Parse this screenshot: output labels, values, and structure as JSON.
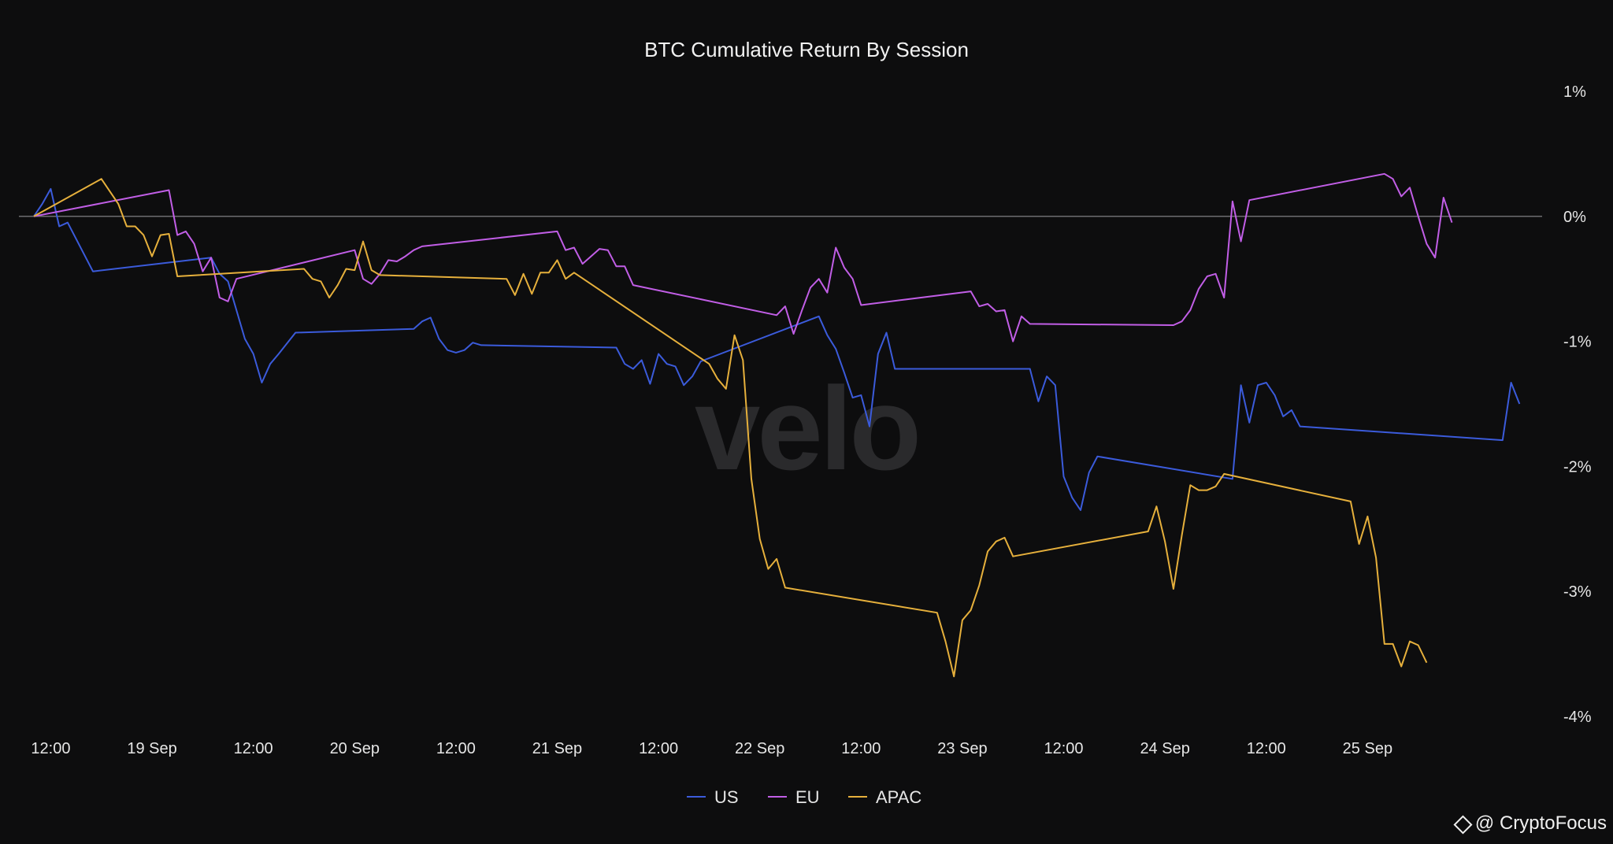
{
  "chart_data": {
    "type": "line",
    "title": "BTC Cumulative Return By Session",
    "watermark": "velo",
    "x_axis": {
      "type": "date",
      "range": [
        "2023-09-18T10:00",
        "2023-09-25T19:00"
      ],
      "ticks": [
        {
          "t": "2023-09-18T12:00",
          "label": "12:00"
        },
        {
          "t": "2023-09-19T00:00",
          "label": "19 Sep"
        },
        {
          "t": "2023-09-19T12:00",
          "label": "12:00"
        },
        {
          "t": "2023-09-20T00:00",
          "label": "20 Sep"
        },
        {
          "t": "2023-09-20T12:00",
          "label": "12:00"
        },
        {
          "t": "2023-09-21T00:00",
          "label": "21 Sep"
        },
        {
          "t": "2023-09-21T12:00",
          "label": "12:00"
        },
        {
          "t": "2023-09-22T00:00",
          "label": "22 Sep"
        },
        {
          "t": "2023-09-22T12:00",
          "label": "12:00"
        },
        {
          "t": "2023-09-23T00:00",
          "label": "23 Sep"
        },
        {
          "t": "2023-09-23T12:00",
          "label": "12:00"
        },
        {
          "t": "2023-09-24T00:00",
          "label": "24 Sep"
        },
        {
          "t": "2023-09-24T12:00",
          "label": "12:00"
        },
        {
          "t": "2023-09-25T00:00",
          "label": "25 Sep"
        }
      ]
    },
    "y_axis": {
      "position": "right",
      "range": [
        -4,
        1
      ],
      "ticks": [
        {
          "v": 1,
          "label": "1%"
        },
        {
          "v": 0,
          "label": "0%"
        },
        {
          "v": -1,
          "label": "-1%"
        },
        {
          "v": -2,
          "label": "-2%"
        },
        {
          "v": -3,
          "label": "-3%"
        },
        {
          "v": -4,
          "label": "-4%"
        }
      ],
      "reference_line": 0
    },
    "grid": false,
    "legend": "bottom-center",
    "series": [
      {
        "name": "US",
        "color": "#3b5bdb",
        "points": [
          [
            "2023-09-18T10:00",
            0.0
          ],
          [
            "2023-09-18T11:00",
            0.1
          ],
          [
            "2023-09-18T12:00",
            0.22
          ],
          [
            "2023-09-18T13:00",
            -0.08
          ],
          [
            "2023-09-18T14:00",
            -0.05
          ],
          [
            "2023-09-18T17:00",
            -0.44
          ],
          [
            "2023-09-19T07:00",
            -0.33
          ],
          [
            "2023-09-19T08:00",
            -0.46
          ],
          [
            "2023-09-19T09:00",
            -0.52
          ],
          [
            "2023-09-19T11:00",
            -0.98
          ],
          [
            "2023-09-19T12:00",
            -1.1
          ],
          [
            "2023-09-19T13:00",
            -1.33
          ],
          [
            "2023-09-19T14:00",
            -1.18
          ],
          [
            "2023-09-19T15:00",
            -1.1
          ],
          [
            "2023-09-19T17:00",
            -0.93
          ],
          [
            "2023-09-20T07:00",
            -0.9
          ],
          [
            "2023-09-20T08:00",
            -0.84
          ],
          [
            "2023-09-20T09:00",
            -0.81
          ],
          [
            "2023-09-20T10:00",
            -0.98
          ],
          [
            "2023-09-20T11:00",
            -1.07
          ],
          [
            "2023-09-20T12:00",
            -1.09
          ],
          [
            "2023-09-20T13:00",
            -1.07
          ],
          [
            "2023-09-20T14:00",
            -1.01
          ],
          [
            "2023-09-20T15:00",
            -1.03
          ],
          [
            "2023-09-21T07:00",
            -1.05
          ],
          [
            "2023-09-21T08:00",
            -1.18
          ],
          [
            "2023-09-21T09:00",
            -1.22
          ],
          [
            "2023-09-21T10:00",
            -1.15
          ],
          [
            "2023-09-21T11:00",
            -1.34
          ],
          [
            "2023-09-21T12:00",
            -1.1
          ],
          [
            "2023-09-21T13:00",
            -1.18
          ],
          [
            "2023-09-21T14:00",
            -1.2
          ],
          [
            "2023-09-21T15:00",
            -1.35
          ],
          [
            "2023-09-21T16:00",
            -1.28
          ],
          [
            "2023-09-21T17:00",
            -1.16
          ],
          [
            "2023-09-22T07:00",
            -0.8
          ],
          [
            "2023-09-22T08:00",
            -0.95
          ],
          [
            "2023-09-22T09:00",
            -1.06
          ],
          [
            "2023-09-22T10:00",
            -1.25
          ],
          [
            "2023-09-22T11:00",
            -1.45
          ],
          [
            "2023-09-22T12:00",
            -1.43
          ],
          [
            "2023-09-22T13:00",
            -1.68
          ],
          [
            "2023-09-22T14:00",
            -1.1
          ],
          [
            "2023-09-22T15:00",
            -0.93
          ],
          [
            "2023-09-22T16:00",
            -1.22
          ],
          [
            "2023-09-23T08:00",
            -1.22
          ],
          [
            "2023-09-23T09:00",
            -1.48
          ],
          [
            "2023-09-23T10:00",
            -1.28
          ],
          [
            "2023-09-23T11:00",
            -1.35
          ],
          [
            "2023-09-23T12:00",
            -2.08
          ],
          [
            "2023-09-23T13:00",
            -2.25
          ],
          [
            "2023-09-23T14:00",
            -2.35
          ],
          [
            "2023-09-23T15:00",
            -2.05
          ],
          [
            "2023-09-23T16:00",
            -1.92
          ],
          [
            "2023-09-24T08:00",
            -2.1
          ],
          [
            "2023-09-24T09:00",
            -1.35
          ],
          [
            "2023-09-24T10:00",
            -1.65
          ],
          [
            "2023-09-24T11:00",
            -1.35
          ],
          [
            "2023-09-24T12:00",
            -1.33
          ],
          [
            "2023-09-24T13:00",
            -1.43
          ],
          [
            "2023-09-24T14:00",
            -1.6
          ],
          [
            "2023-09-24T15:00",
            -1.55
          ],
          [
            "2023-09-24T16:00",
            -1.68
          ],
          [
            "2023-09-25T16:00",
            -1.79
          ],
          [
            "2023-09-25T17:00",
            -1.33
          ],
          [
            "2023-09-25T18:00",
            -1.5
          ]
        ]
      },
      {
        "name": "EU",
        "color": "#c15ee6",
        "points": [
          [
            "2023-09-18T10:00",
            0.0
          ],
          [
            "2023-09-19T02:00",
            0.21
          ],
          [
            "2023-09-19T03:00",
            -0.15
          ],
          [
            "2023-09-19T04:00",
            -0.12
          ],
          [
            "2023-09-19T05:00",
            -0.22
          ],
          [
            "2023-09-19T06:00",
            -0.44
          ],
          [
            "2023-09-19T07:00",
            -0.33
          ],
          [
            "2023-09-19T08:00",
            -0.65
          ],
          [
            "2023-09-19T09:00",
            -0.68
          ],
          [
            "2023-09-19T10:00",
            -0.5
          ],
          [
            "2023-09-20T00:00",
            -0.27
          ],
          [
            "2023-09-20T01:00",
            -0.5
          ],
          [
            "2023-09-20T02:00",
            -0.54
          ],
          [
            "2023-09-20T03:00",
            -0.46
          ],
          [
            "2023-09-20T04:00",
            -0.35
          ],
          [
            "2023-09-20T05:00",
            -0.36
          ],
          [
            "2023-09-20T06:00",
            -0.32
          ],
          [
            "2023-09-20T07:00",
            -0.27
          ],
          [
            "2023-09-20T08:00",
            -0.24
          ],
          [
            "2023-09-21T00:00",
            -0.12
          ],
          [
            "2023-09-21T01:00",
            -0.27
          ],
          [
            "2023-09-21T02:00",
            -0.25
          ],
          [
            "2023-09-21T03:00",
            -0.38
          ],
          [
            "2023-09-21T04:00",
            -0.32
          ],
          [
            "2023-09-21T05:00",
            -0.26
          ],
          [
            "2023-09-21T06:00",
            -0.27
          ],
          [
            "2023-09-21T07:00",
            -0.4
          ],
          [
            "2023-09-21T08:00",
            -0.4
          ],
          [
            "2023-09-21T09:00",
            -0.55
          ],
          [
            "2023-09-22T02:00",
            -0.79
          ],
          [
            "2023-09-22T03:00",
            -0.72
          ],
          [
            "2023-09-22T04:00",
            -0.94
          ],
          [
            "2023-09-22T05:00",
            -0.75
          ],
          [
            "2023-09-22T06:00",
            -0.57
          ],
          [
            "2023-09-22T07:00",
            -0.5
          ],
          [
            "2023-09-22T08:00",
            -0.61
          ],
          [
            "2023-09-22T09:00",
            -0.25
          ],
          [
            "2023-09-22T10:00",
            -0.41
          ],
          [
            "2023-09-22T11:00",
            -0.5
          ],
          [
            "2023-09-22T12:00",
            -0.71
          ],
          [
            "2023-09-23T01:00",
            -0.6
          ],
          [
            "2023-09-23T02:00",
            -0.72
          ],
          [
            "2023-09-23T03:00",
            -0.7
          ],
          [
            "2023-09-23T04:00",
            -0.76
          ],
          [
            "2023-09-23T05:00",
            -0.75
          ],
          [
            "2023-09-23T06:00",
            -1.0
          ],
          [
            "2023-09-23T07:00",
            -0.8
          ],
          [
            "2023-09-23T08:00",
            -0.86
          ],
          [
            "2023-09-24T01:00",
            -0.87
          ],
          [
            "2023-09-24T02:00",
            -0.84
          ],
          [
            "2023-09-24T03:00",
            -0.75
          ],
          [
            "2023-09-24T04:00",
            -0.58
          ],
          [
            "2023-09-24T05:00",
            -0.48
          ],
          [
            "2023-09-24T06:00",
            -0.46
          ],
          [
            "2023-09-24T07:00",
            -0.65
          ],
          [
            "2023-09-24T08:00",
            0.12
          ],
          [
            "2023-09-24T09:00",
            -0.2
          ],
          [
            "2023-09-24T10:00",
            0.13
          ],
          [
            "2023-09-25T02:00",
            0.34
          ],
          [
            "2023-09-25T03:00",
            0.3
          ],
          [
            "2023-09-25T04:00",
            0.16
          ],
          [
            "2023-09-25T05:00",
            0.23
          ],
          [
            "2023-09-25T06:00",
            0.0
          ],
          [
            "2023-09-25T07:00",
            -0.22
          ],
          [
            "2023-09-25T08:00",
            -0.33
          ],
          [
            "2023-09-25T09:00",
            0.15
          ],
          [
            "2023-09-25T10:00",
            -0.05
          ]
        ]
      },
      {
        "name": "APAC",
        "color": "#e6b03c",
        "points": [
          [
            "2023-09-18T10:00",
            0.0
          ],
          [
            "2023-09-18T18:00",
            0.3
          ],
          [
            "2023-09-18T20:00",
            0.1
          ],
          [
            "2023-09-18T21:00",
            -0.08
          ],
          [
            "2023-09-18T22:00",
            -0.08
          ],
          [
            "2023-09-18T23:00",
            -0.15
          ],
          [
            "2023-09-19T00:00",
            -0.32
          ],
          [
            "2023-09-19T01:00",
            -0.15
          ],
          [
            "2023-09-19T02:00",
            -0.14
          ],
          [
            "2023-09-19T03:00",
            -0.48
          ],
          [
            "2023-09-19T18:00",
            -0.42
          ],
          [
            "2023-09-19T19:00",
            -0.5
          ],
          [
            "2023-09-19T20:00",
            -0.52
          ],
          [
            "2023-09-19T21:00",
            -0.65
          ],
          [
            "2023-09-19T22:00",
            -0.55
          ],
          [
            "2023-09-19T23:00",
            -0.42
          ],
          [
            "2023-09-20T00:00",
            -0.43
          ],
          [
            "2023-09-20T01:00",
            -0.2
          ],
          [
            "2023-09-20T02:00",
            -0.43
          ],
          [
            "2023-09-20T03:00",
            -0.47
          ],
          [
            "2023-09-20T18:00",
            -0.5
          ],
          [
            "2023-09-20T19:00",
            -0.63
          ],
          [
            "2023-09-20T20:00",
            -0.46
          ],
          [
            "2023-09-20T21:00",
            -0.62
          ],
          [
            "2023-09-20T22:00",
            -0.45
          ],
          [
            "2023-09-20T23:00",
            -0.45
          ],
          [
            "2023-09-21T00:00",
            -0.35
          ],
          [
            "2023-09-21T01:00",
            -0.5
          ],
          [
            "2023-09-21T02:00",
            -0.45
          ],
          [
            "2023-09-21T18:00",
            -1.18
          ],
          [
            "2023-09-21T19:00",
            -1.3
          ],
          [
            "2023-09-21T20:00",
            -1.38
          ],
          [
            "2023-09-21T21:00",
            -0.95
          ],
          [
            "2023-09-21T22:00",
            -1.15
          ],
          [
            "2023-09-21T23:00",
            -2.1
          ],
          [
            "2023-09-22T00:00",
            -2.58
          ],
          [
            "2023-09-22T01:00",
            -2.82
          ],
          [
            "2023-09-22T02:00",
            -2.74
          ],
          [
            "2023-09-22T03:00",
            -2.97
          ],
          [
            "2023-09-22T21:00",
            -3.17
          ],
          [
            "2023-09-22T22:00",
            -3.4
          ],
          [
            "2023-09-22T23:00",
            -3.68
          ],
          [
            "2023-09-23T00:00",
            -3.23
          ],
          [
            "2023-09-23T01:00",
            -3.15
          ],
          [
            "2023-09-23T02:00",
            -2.95
          ],
          [
            "2023-09-23T03:00",
            -2.68
          ],
          [
            "2023-09-23T04:00",
            -2.6
          ],
          [
            "2023-09-23T05:00",
            -2.57
          ],
          [
            "2023-09-23T06:00",
            -2.72
          ],
          [
            "2023-09-23T22:00",
            -2.52
          ],
          [
            "2023-09-23T23:00",
            -2.32
          ],
          [
            "2023-09-24T00:00",
            -2.6
          ],
          [
            "2023-09-24T01:00",
            -2.98
          ],
          [
            "2023-09-24T02:00",
            -2.55
          ],
          [
            "2023-09-24T03:00",
            -2.15
          ],
          [
            "2023-09-24T04:00",
            -2.19
          ],
          [
            "2023-09-24T05:00",
            -2.19
          ],
          [
            "2023-09-24T06:00",
            -2.16
          ],
          [
            "2023-09-24T07:00",
            -2.06
          ],
          [
            "2023-09-24T22:00",
            -2.28
          ],
          [
            "2023-09-24T23:00",
            -2.62
          ],
          [
            "2023-09-25T00:00",
            -2.4
          ],
          [
            "2023-09-25T01:00",
            -2.73
          ],
          [
            "2023-09-25T02:00",
            -3.42
          ],
          [
            "2023-09-25T03:00",
            -3.42
          ],
          [
            "2023-09-25T04:00",
            -3.6
          ],
          [
            "2023-09-25T05:00",
            -3.4
          ],
          [
            "2023-09-25T06:00",
            -3.43
          ],
          [
            "2023-09-25T07:00",
            -3.57
          ]
        ]
      }
    ]
  },
  "credit": {
    "handle": "@ CryptoFocus",
    "logo_icon": "binance-diamond-icon"
  }
}
